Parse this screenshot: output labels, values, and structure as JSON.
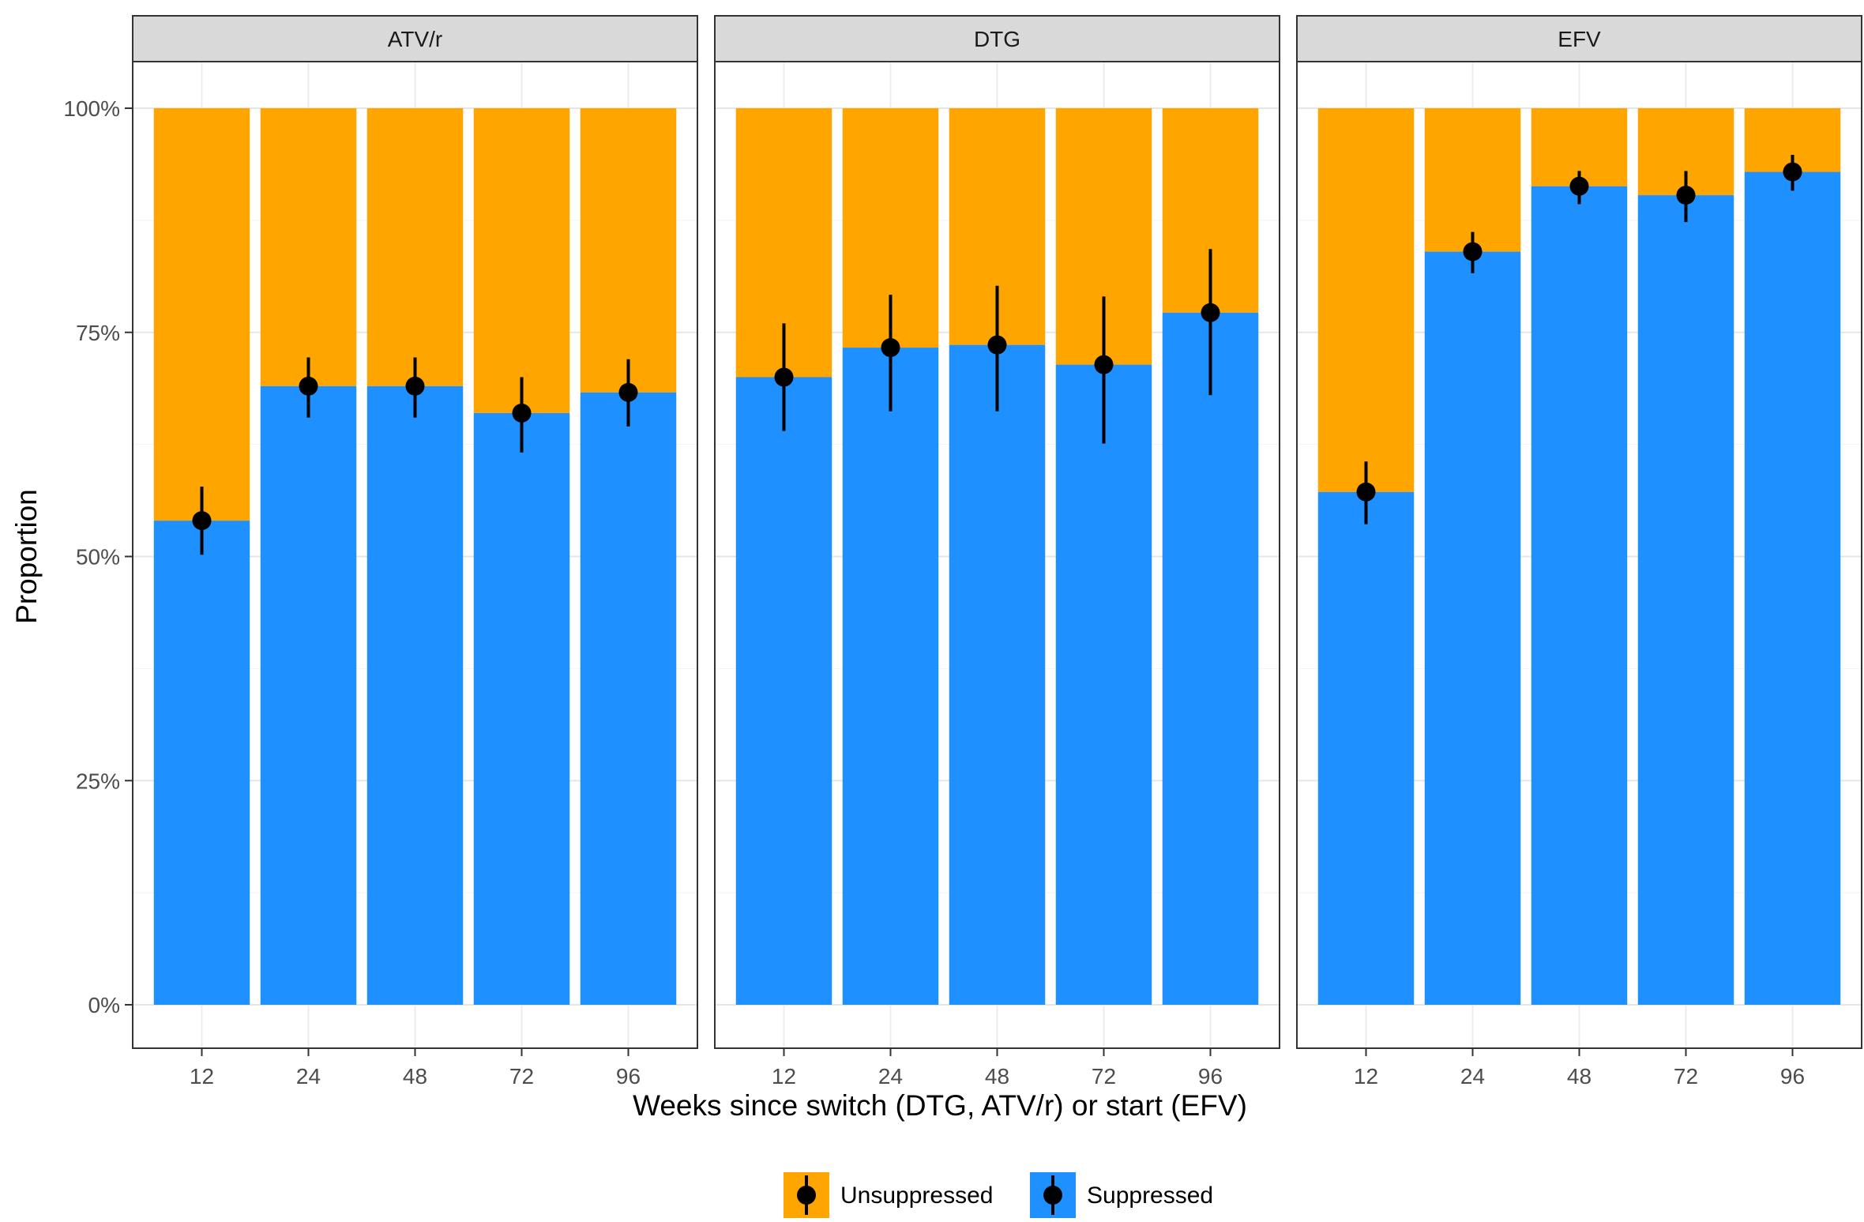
{
  "chart_data": {
    "type": "bar",
    "stacked": true,
    "facets": [
      "ATV/r",
      "DTG",
      "EFV"
    ],
    "categories": [
      "12",
      "24",
      "48",
      "72",
      "96"
    ],
    "xlabel": "Weeks since switch (DTG, ATV/r) or start (EFV)",
    "ylabel": "Proportion",
    "ylim": [
      0,
      1
    ],
    "yticks": [
      "0%",
      "25%",
      "50%",
      "75%",
      "100%"
    ],
    "yticks_values": [
      0,
      0.25,
      0.5,
      0.75,
      1
    ],
    "legend": {
      "position": "bottom",
      "items": [
        "Unsuppressed",
        "Suppressed"
      ]
    },
    "colors": {
      "Unsuppressed": "#FFA500",
      "Suppressed": "#1E90FF"
    },
    "grid": true,
    "panels": [
      {
        "facet": "ATV/r",
        "suppressed": [
          0.54,
          0.69,
          0.69,
          0.66,
          0.683
        ],
        "ci_low": [
          0.502,
          0.655,
          0.655,
          0.616,
          0.645
        ],
        "ci_high": [
          0.578,
          0.722,
          0.722,
          0.7,
          0.72
        ]
      },
      {
        "facet": "DTG",
        "suppressed": [
          0.7,
          0.733,
          0.736,
          0.714,
          0.772
        ],
        "ci_low": [
          0.64,
          0.662,
          0.662,
          0.626,
          0.68
        ],
        "ci_high": [
          0.76,
          0.792,
          0.802,
          0.79,
          0.843
        ]
      },
      {
        "facet": "EFV",
        "suppressed": [
          0.572,
          0.84,
          0.913,
          0.903,
          0.929
        ],
        "ci_low": [
          0.536,
          0.816,
          0.893,
          0.873,
          0.908
        ],
        "ci_high": [
          0.606,
          0.862,
          0.93,
          0.93,
          0.948
        ]
      }
    ]
  }
}
